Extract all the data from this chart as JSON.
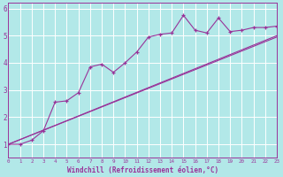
{
  "xlabel": "Windchill (Refroidissement éolien,°C)",
  "bg_color": "#b2e8e8",
  "grid_color": "#ffffff",
  "line_color": "#993399",
  "xmin": 0,
  "xmax": 23,
  "ymin": 0.5,
  "ymax": 6.2,
  "x_ticks": [
    0,
    1,
    2,
    3,
    4,
    5,
    6,
    7,
    8,
    9,
    10,
    11,
    12,
    13,
    14,
    15,
    16,
    17,
    18,
    19,
    20,
    21,
    22,
    23
  ],
  "y_ticks": [
    1,
    2,
    3,
    4,
    5,
    6
  ],
  "series0_x": [
    0,
    1,
    2,
    3,
    4,
    5,
    6,
    7,
    8,
    9,
    10,
    11,
    12,
    13,
    14,
    15,
    16,
    17,
    18,
    19,
    20,
    21,
    22,
    23
  ],
  "series0_y": [
    1.0,
    1.0,
    1.15,
    1.5,
    2.55,
    2.6,
    2.9,
    3.85,
    3.95,
    3.65,
    4.0,
    4.4,
    4.95,
    5.05,
    5.1,
    5.75,
    5.2,
    5.1,
    5.65,
    5.15,
    5.2,
    5.3,
    5.3,
    5.35
  ],
  "line1_x": [
    0,
    23
  ],
  "line1_y": [
    1.0,
    5.0
  ],
  "line2_x": [
    0,
    23
  ],
  "line2_y": [
    1.0,
    4.95
  ],
  "xlabel_fontsize": 5.5,
  "tick_fontsize_x": 4.2,
  "tick_fontsize_y": 5.5
}
